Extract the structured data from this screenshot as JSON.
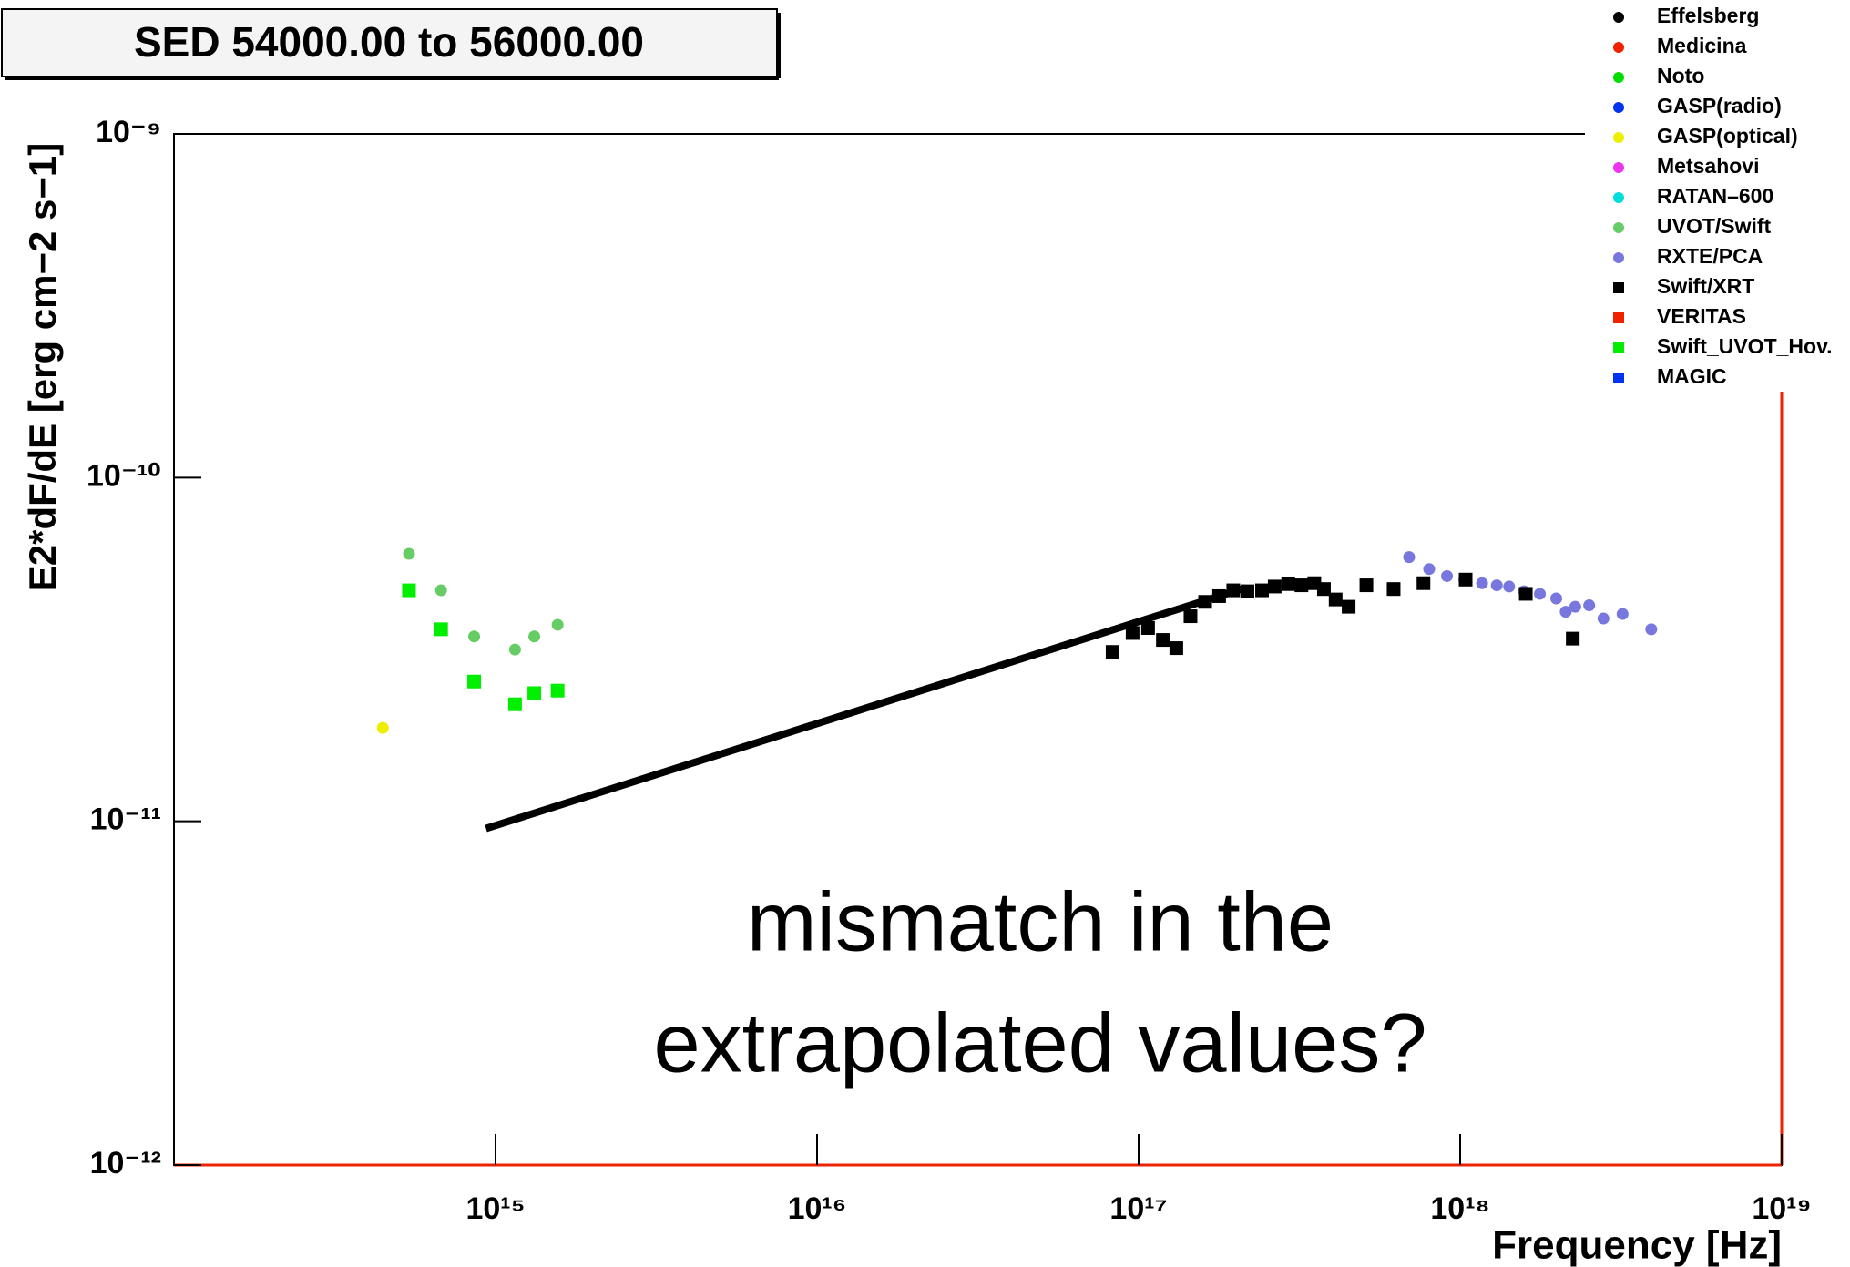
{
  "chart_data": {
    "type": "scatter",
    "title": "SED 54000.00 to 56000.00",
    "x_label": "Frequency [Hz]",
    "y_label": "E2*dF/dE [erg cm−2 s−1]",
    "annotation": [
      "mismatch in the",
      "extrapolated values?"
    ],
    "xlog": true,
    "ylog": true,
    "xlim": [
      100000000000000.0,
      1e+19
    ],
    "ylim": [
      1e-12,
      1e-09
    ],
    "xticks": [
      {
        "value": 1000000000000000.0,
        "label": "10¹⁵"
      },
      {
        "value": 1e+16,
        "label": "10¹⁶"
      },
      {
        "value": 1e+17,
        "label": "10¹⁷"
      },
      {
        "value": 1e+18,
        "label": "10¹⁸"
      },
      {
        "value": 1e+19,
        "label": "10¹⁹"
      }
    ],
    "yticks": [
      {
        "value": 1e-12,
        "label": "10⁻¹²"
      },
      {
        "value": 1e-11,
        "label": "10⁻¹¹"
      },
      {
        "value": 1e-10,
        "label": "10⁻¹⁰"
      },
      {
        "value": 1e-09,
        "label": "10⁻⁹"
      }
    ],
    "model_line": {
      "color": "#000000",
      "x": [
        934000000000000.0,
        2.15e+17
      ],
      "values": [
        9.53e-12,
        4.78e-11
      ]
    },
    "series": [
      {
        "name": "Effelsberg",
        "color": "#000000",
        "marker": "circle",
        "x": [],
        "values": []
      },
      {
        "name": "Medicina",
        "color": "#ee2200",
        "marker": "circle",
        "x": [],
        "values": []
      },
      {
        "name": "Noto",
        "color": "#00dd00",
        "marker": "circle",
        "x": [],
        "values": []
      },
      {
        "name": "GASP(radio)",
        "color": "#0033ee",
        "marker": "circle",
        "x": [],
        "values": []
      },
      {
        "name": "GASP(optical)",
        "color": "#eeee00",
        "marker": "circle",
        "x": [
          446000000000000.0
        ],
        "values": [
          1.87e-11
        ]
      },
      {
        "name": "Metsahovi",
        "color": "#ee33ee",
        "marker": "circle",
        "x": [],
        "values": []
      },
      {
        "name": "RATAN–600",
        "color": "#00dddd",
        "marker": "circle",
        "x": [],
        "values": []
      },
      {
        "name": "UVOT/Swift",
        "color": "#66cc66",
        "marker": "circle",
        "x": [
          538000000000000.0,
          677000000000000.0,
          858000000000000.0,
          1150000000000000.0,
          1320000000000000.0,
          1560000000000000.0
        ],
        "values": [
          6e-11,
          4.7e-11,
          3.45e-11,
          3.16e-11,
          3.45e-11,
          3.73e-11
        ]
      },
      {
        "name": "RXTE/PCA",
        "color": "#7777dd",
        "marker": "circle",
        "x": [
          6.94e+17,
          8.01e+17,
          9.1e+17,
          1.03e+18,
          1.17e+18,
          1.3e+18,
          1.42e+18,
          1.58e+18,
          1.77e+18,
          1.99e+18,
          2.13e+18,
          2.28e+18,
          2.52e+18,
          2.79e+18,
          3.2e+18,
          3.93e+18
        ],
        "values": [
          5.87e-11,
          5.42e-11,
          5.17e-11,
          5.05e-11,
          4.93e-11,
          4.86e-11,
          4.82e-11,
          4.67e-11,
          4.59e-11,
          4.45e-11,
          4.07e-11,
          4.21e-11,
          4.25e-11,
          3.89e-11,
          4.01e-11,
          3.62e-11
        ]
      },
      {
        "name": "Swift/XRT",
        "color": "#000000",
        "marker": "square",
        "x": [
          8.3e+16,
          9.58e+16,
          1.07e+17,
          1.19e+17,
          1.31e+17,
          1.45e+17,
          1.61e+17,
          1.78e+17,
          1.97e+17,
          2.18e+17,
          2.42e+17,
          2.65e+17,
          2.92e+17,
          3.21e+17,
          3.52e+17,
          3.77e+17,
          4.1e+17,
          4.5e+17,
          5.11e+17,
          6.21e+17,
          7.69e+17,
          1.04e+18,
          1.6e+18,
          2.24e+18
        ],
        "values": [
          3.11e-11,
          3.53e-11,
          3.65e-11,
          3.37e-11,
          3.19e-11,
          3.95e-11,
          4.35e-11,
          4.52e-11,
          4.7e-11,
          4.67e-11,
          4.7e-11,
          4.82e-11,
          4.9e-11,
          4.86e-11,
          4.93e-11,
          4.74e-11,
          4.42e-11,
          4.21e-11,
          4.86e-11,
          4.74e-11,
          4.93e-11,
          5.05e-11,
          4.59e-11,
          3.4e-11
        ]
      },
      {
        "name": "VERITAS",
        "color": "#ee2200",
        "marker": "square",
        "x": [],
        "values": []
      },
      {
        "name": "Swift_UVOT_Hov.",
        "color": "#00ee00",
        "marker": "square",
        "x": [
          538000000000000.0,
          677000000000000.0,
          858000000000000.0,
          1150000000000000.0,
          1320000000000000.0,
          1560000000000000.0
        ],
        "values": [
          4.7e-11,
          3.62e-11,
          2.55e-11,
          2.19e-11,
          2.36e-11,
          2.4e-11
        ]
      },
      {
        "name": "MAGIC",
        "color": "#0033ee",
        "marker": "square",
        "x": [],
        "values": []
      }
    ]
  }
}
